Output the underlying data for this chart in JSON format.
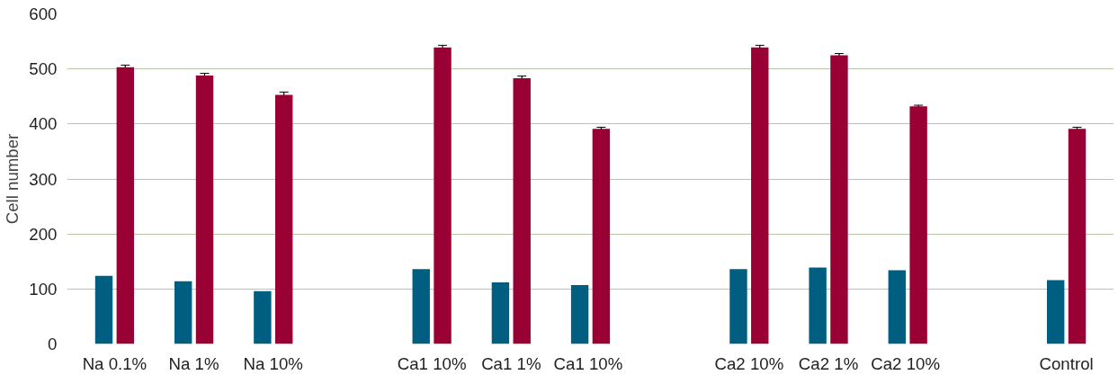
{
  "chart_data": {
    "type": "bar",
    "ylabel": "Cell number",
    "categories": [
      "Na 0.1%",
      "Na 1%",
      "Na 10%",
      null,
      "Ca1 10%",
      "Ca1 1%",
      "Ca1  10%",
      null,
      "Ca2 10%",
      "Ca2 1%",
      "Ca2  10%",
      null,
      "Control"
    ],
    "series": [
      {
        "color": "#005f80",
        "values": [
          124,
          114,
          96,
          null,
          136,
          112,
          107,
          null,
          136,
          139,
          134,
          null,
          116
        ]
      },
      {
        "color": "#990033",
        "values": [
          503,
          488,
          453,
          null,
          539,
          483,
          391,
          null,
          539,
          525,
          432,
          null,
          391
        ],
        "errors": [
          4,
          4,
          5,
          null,
          4,
          4,
          3,
          null,
          4,
          3,
          2,
          null,
          3
        ]
      }
    ],
    "ylim": [
      0,
      600
    ],
    "yticks": [
      0,
      100,
      200,
      300,
      400,
      500,
      600
    ],
    "grid": "y"
  }
}
